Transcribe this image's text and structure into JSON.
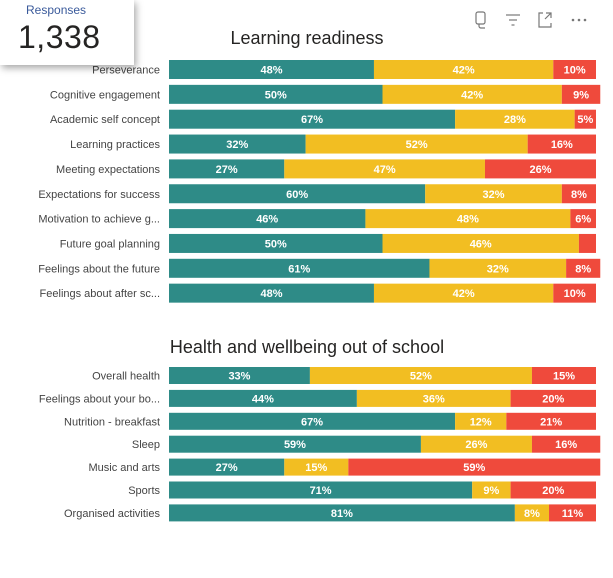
{
  "card": {
    "label": "Responses",
    "value": "1,338"
  },
  "toolbar": {
    "icons": [
      "copy-icon",
      "filter-icon",
      "focus-mode-icon",
      "more-options-icon"
    ]
  },
  "colors": {
    "teal": "#2e8b87",
    "yellow": "#f2be22",
    "red": "#ef4a3c"
  },
  "chart_data": [
    {
      "type": "bar",
      "orientation": "horizontal",
      "stacked": "100%",
      "title": "Learning readiness",
      "categories": [
        "Perseverance",
        "Cognitive engagement",
        "Academic self concept",
        "Learning practices",
        "Meeting expectations",
        "Expectations for success",
        "Motivation to achieve g...",
        "Future goal planning",
        "Feelings about the future",
        "Feelings about after sc..."
      ],
      "series": [
        {
          "name": "teal",
          "values": [
            48,
            50,
            67,
            32,
            27,
            60,
            46,
            50,
            61,
            48
          ]
        },
        {
          "name": "yellow",
          "values": [
            42,
            42,
            28,
            52,
            47,
            32,
            48,
            46,
            32,
            42
          ]
        },
        {
          "name": "red",
          "values": [
            10,
            9,
            5,
            16,
            26,
            8,
            6,
            4,
            8,
            10
          ]
        }
      ],
      "labels": [
        [
          "48%",
          "42%",
          "10%"
        ],
        [
          "50%",
          "42%",
          "9%"
        ],
        [
          "67%",
          "28%",
          "5%"
        ],
        [
          "32%",
          "52%",
          "16%"
        ],
        [
          "27%",
          "47%",
          "26%"
        ],
        [
          "60%",
          "32%",
          "8%"
        ],
        [
          "46%",
          "48%",
          "6%"
        ],
        [
          "50%",
          "46%",
          ""
        ],
        [
          "61%",
          "32%",
          "8%"
        ],
        [
          "48%",
          "42%",
          "10%"
        ]
      ]
    },
    {
      "type": "bar",
      "orientation": "horizontal",
      "stacked": "100%",
      "title": "Health and wellbeing out of school",
      "categories": [
        "Overall health",
        "Feelings about your bo...",
        "Nutrition - breakfast",
        "Sleep",
        "Music and arts",
        "Sports",
        "Organised activities"
      ],
      "series": [
        {
          "name": "teal",
          "values": [
            33,
            44,
            67,
            59,
            27,
            71,
            81
          ]
        },
        {
          "name": "yellow",
          "values": [
            52,
            36,
            12,
            26,
            15,
            9,
            8
          ]
        },
        {
          "name": "red",
          "values": [
            15,
            20,
            21,
            16,
            59,
            20,
            11
          ]
        }
      ],
      "labels": [
        [
          "33%",
          "52%",
          "15%"
        ],
        [
          "44%",
          "36%",
          "20%"
        ],
        [
          "67%",
          "12%",
          "21%"
        ],
        [
          "59%",
          "26%",
          "16%"
        ],
        [
          "27%",
          "15%",
          "59%"
        ],
        [
          "71%",
          "9%",
          "20%"
        ],
        [
          "81%",
          "8%",
          "11%"
        ]
      ]
    }
  ]
}
